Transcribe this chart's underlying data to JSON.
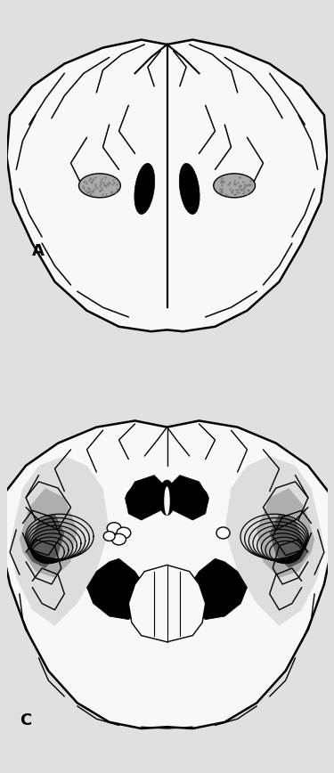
{
  "background_color": "#e0e0e0",
  "panel_bg": "#ebebeb",
  "label_A": "A",
  "label_C": "C",
  "label_fontsize": 13,
  "line_color": "#000000",
  "fill_white": "#f8f8f8",
  "fill_light_gray": "#c0c0c0",
  "fill_mid_gray": "#888888",
  "fill_dark_gray": "#444444",
  "fill_black": "#000000",
  "fill_stipple": "#aaaaaa"
}
